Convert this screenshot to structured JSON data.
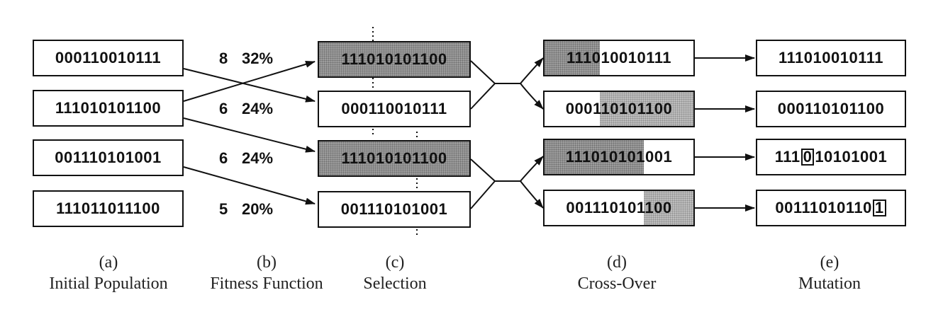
{
  "columns": [
    {
      "id": "a",
      "letter": "(a)",
      "label": "Initial Population"
    },
    {
      "id": "b",
      "letter": "(b)",
      "label": "Fitness Function"
    },
    {
      "id": "c",
      "letter": "(c)",
      "label": "Selection"
    },
    {
      "id": "d",
      "letter": "(d)",
      "label": "Cross-Over"
    },
    {
      "id": "e",
      "letter": "(e)",
      "label": "Mutation"
    }
  ],
  "initial_population": [
    "000110010111",
    "111010101100",
    "001110101001",
    "111011011100"
  ],
  "fitness": [
    {
      "score": "8",
      "percent": "32%"
    },
    {
      "score": "6",
      "percent": "24%"
    },
    {
      "score": "6",
      "percent": "24%"
    },
    {
      "score": "5",
      "percent": "20%"
    }
  ],
  "selection": [
    "111010101100",
    "000110010111",
    "111010101100",
    "001110101001"
  ],
  "crossover": [
    "111010010111",
    "000110101100",
    "111010101001",
    "001110101100"
  ],
  "mutation": [
    "111010010111",
    "000110101100",
    "111010101001",
    "001110101101"
  ]
}
